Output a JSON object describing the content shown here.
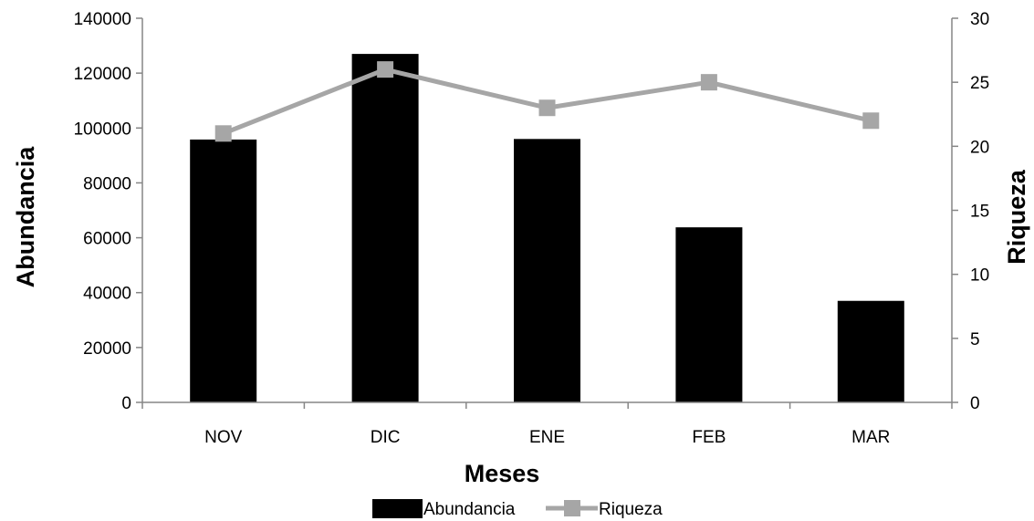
{
  "chart_data": {
    "type": "bar",
    "categories": [
      "NOV",
      "DIC",
      "ENE",
      "FEB",
      "MAR"
    ],
    "series": [
      {
        "name": "Abundancia",
        "type": "bar",
        "axis": "left",
        "color": "#000000",
        "values": [
          95800,
          127000,
          96000,
          63800,
          37000
        ]
      },
      {
        "name": "Riqueza",
        "type": "line",
        "axis": "right",
        "color": "#a6a6a6",
        "marker": "square",
        "values": [
          21,
          26,
          23,
          25,
          22
        ]
      }
    ],
    "xlabel": "Meses",
    "ylabel": "Abundancia",
    "y2label": "Riqueza",
    "ylim": [
      0,
      140000
    ],
    "y2lim": [
      0,
      30
    ],
    "yticks": [
      "0",
      "20000",
      "40000",
      "60000",
      "80000",
      "100000",
      "120000",
      "140000"
    ],
    "y2ticks": [
      "0",
      "5",
      "10",
      "15",
      "20",
      "25",
      "30"
    ],
    "grid": false,
    "legend": "bottom"
  }
}
